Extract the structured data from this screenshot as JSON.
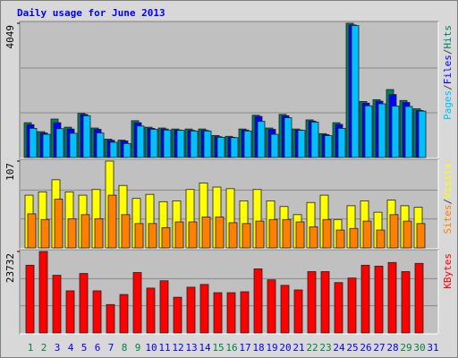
{
  "chart_data": [
    {
      "type": "bar",
      "title": "Daily usage for June 2013",
      "legend_separator": "/",
      "ylim": [
        0,
        4049
      ],
      "yticks": [
        4049
      ],
      "series": [
        {
          "name": "Hits",
          "color": "#00805c",
          "values": [
            1050,
            780,
            1160,
            915,
            1330,
            890,
            555,
            525,
            1110,
            915,
            890,
            860,
            860,
            860,
            665,
            640,
            860,
            1275,
            890,
            1300,
            860,
            1135,
            720,
            1050,
            4049,
            1690,
            1745,
            2050,
            1720,
            1470,
            null
          ]
        },
        {
          "name": "Files",
          "color": "#0000ff",
          "values": [
            990,
            740,
            1050,
            860,
            1300,
            850,
            520,
            500,
            1050,
            880,
            860,
            830,
            820,
            820,
            630,
            610,
            830,
            1240,
            850,
            1260,
            830,
            1100,
            690,
            1000,
            4000,
            1640,
            1700,
            1900,
            1660,
            1420,
            null
          ]
        },
        {
          "name": "Pages",
          "color": "#00c0ff",
          "values": [
            880,
            700,
            870,
            730,
            1260,
            740,
            460,
            420,
            950,
            850,
            830,
            820,
            800,
            800,
            610,
            600,
            800,
            1090,
            700,
            1200,
            820,
            1070,
            660,
            880,
            3980,
            1560,
            1620,
            1550,
            1540,
            1400,
            null
          ]
        }
      ]
    },
    {
      "type": "bar",
      "legend_separator": "/",
      "ylim": [
        0,
        107
      ],
      "yticks": [
        107
      ],
      "series": [
        {
          "name": "Visits",
          "color": "#ffff00",
          "values": [
            65,
            69,
            84,
            69,
            65,
            72,
            107,
            77,
            61,
            66,
            57,
            58,
            72,
            80,
            75,
            73,
            58,
            72,
            58,
            51,
            41,
            56,
            65,
            35,
            52,
            58,
            44,
            59,
            52,
            50,
            null
          ]
        },
        {
          "name": "Sites",
          "color": "#ff8000",
          "values": [
            42,
            35,
            60,
            36,
            41,
            36,
            65,
            41,
            30,
            30,
            25,
            32,
            32,
            38,
            38,
            31,
            30,
            33,
            35,
            35,
            32,
            26,
            35,
            22,
            24,
            33,
            22,
            41,
            33,
            30,
            null
          ]
        }
      ]
    },
    {
      "type": "bar",
      "ylim": [
        0,
        23732
      ],
      "yticks": [
        23732
      ],
      "categories": [
        "1",
        "2",
        "3",
        "4",
        "5",
        "6",
        "7",
        "8",
        "9",
        "10",
        "11",
        "12",
        "13",
        "14",
        "15",
        "16",
        "17",
        "18",
        "19",
        "20",
        "21",
        "22",
        "23",
        "24",
        "25",
        "26",
        "27",
        "28",
        "29",
        "30",
        "31"
      ],
      "weekends": [
        1,
        2,
        8,
        9,
        15,
        16,
        22,
        23,
        29,
        30
      ],
      "weekend_color": "#008040",
      "weekday_color": "#0000ff",
      "series": [
        {
          "name": "KBytes",
          "color": "#ff0000",
          "values": [
            19730,
            23732,
            16800,
            12270,
            17330,
            12270,
            8270,
            11200,
            17600,
            13070,
            15200,
            10400,
            13330,
            14130,
            11730,
            11730,
            12000,
            18670,
            15470,
            13870,
            12530,
            17870,
            17870,
            14670,
            16000,
            19730,
            19470,
            20530,
            17870,
            20270,
            null
          ]
        }
      ]
    }
  ]
}
